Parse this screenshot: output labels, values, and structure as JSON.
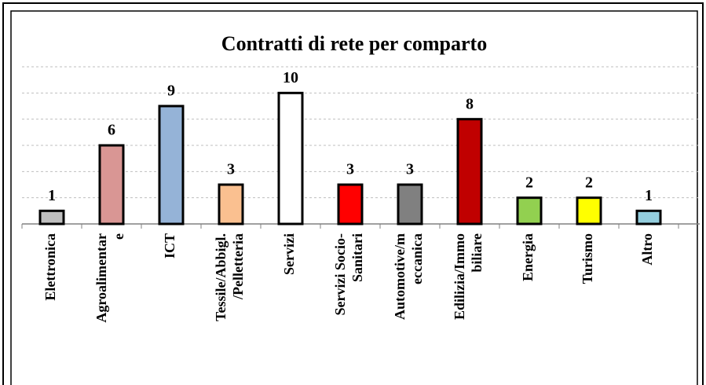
{
  "chart_data": {
    "type": "bar",
    "title": "Contratti di rete per comparto",
    "categories": [
      "Elettronica",
      "Agroalimentar\ne",
      "ICT",
      "Tessile/Abbigl.\n/Pelletteria",
      "Servizi",
      "Servizi Socio-\nSanitari",
      "Automotive/m\neccanica",
      "Edilizia/Immo\nbiliare",
      "Energia",
      "Turismo",
      "Altro"
    ],
    "values": [
      1,
      6,
      9,
      3,
      10,
      3,
      3,
      8,
      2,
      2,
      1
    ],
    "colors": [
      "#bfbfbf",
      "#d99694",
      "#95b3d7",
      "#fac090",
      "#ffffff",
      "#ff0000",
      "#808080",
      "#c00000",
      "#92d050",
      "#ffff00",
      "#93cddd"
    ],
    "ylim": [
      0,
      12
    ],
    "yticks": [
      0,
      2,
      4,
      6,
      8,
      10,
      12
    ],
    "grid": true
  }
}
